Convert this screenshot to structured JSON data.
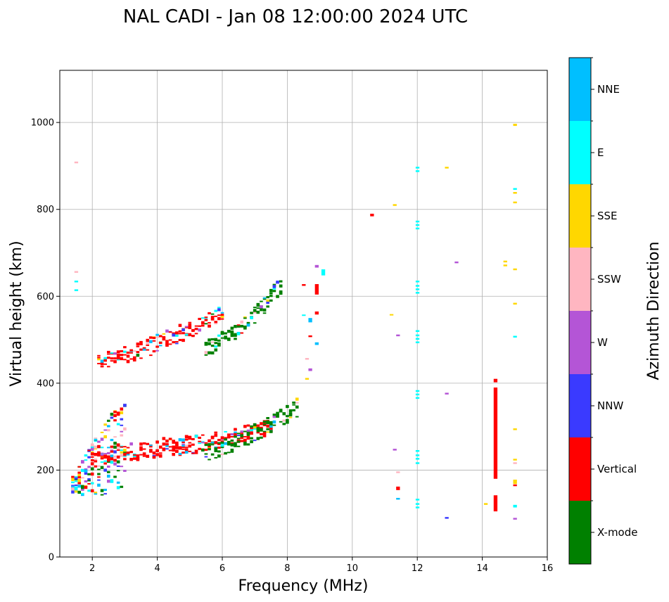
{
  "chart_data": {
    "type": "scatter",
    "title": "NAL CADI - Jan 08 12:00:00 2024 UTC",
    "xlabel": "Frequency (MHz)",
    "ylabel": "Virtual height (km)",
    "xlim": [
      1,
      16
    ],
    "ylim": [
      0,
      1120
    ],
    "xticks": [
      2,
      4,
      6,
      8,
      10,
      12,
      14,
      16
    ],
    "yticks": [
      0,
      200,
      400,
      600,
      800,
      1000
    ],
    "grid": true,
    "colorbar": {
      "label": "Azimuth Direction",
      "categories": [
        {
          "name": "X-mode",
          "color": "#008000"
        },
        {
          "name": "Vertical",
          "color": "#ff0000"
        },
        {
          "name": "NNW",
          "color": "#3a3aff"
        },
        {
          "name": "W",
          "color": "#b455d6"
        },
        {
          "name": "SSW",
          "color": "#ffb6c1"
        },
        {
          "name": "SSE",
          "color": "#ffd700"
        },
        {
          "name": "E",
          "color": "#00ffff"
        },
        {
          "name": "NNE",
          "color": "#00bfff"
        }
      ]
    },
    "features": [
      {
        "name": "E-region echoes",
        "category": "mixed",
        "fstart": 1.4,
        "fend": 3.0,
        "hstart": 140,
        "hend": 330
      },
      {
        "name": "F1 trace",
        "category": "Vertical",
        "fstart": 2.0,
        "fend": 5.0,
        "hstart": 230,
        "hend": 260
      },
      {
        "name": "F2 trace",
        "category": "Vertical",
        "fstart": 4.5,
        "fend": 7.5,
        "hstart": 250,
        "hend": 300
      },
      {
        "name": "F2 X-mode trace",
        "category": "X-mode",
        "fstart": 5.5,
        "fend": 8.3,
        "hstart": 240,
        "hend": 340
      },
      {
        "name": "Second hop",
        "category": "Vertical",
        "fstart": 2.2,
        "fend": 6.0,
        "hstart": 450,
        "hend": 560
      },
      {
        "name": "Second hop X-mode",
        "category": "X-mode",
        "fstart": 5.5,
        "fend": 7.8,
        "hstart": 480,
        "hend": 620
      }
    ],
    "points": [
      {
        "f": 14.4,
        "h0": 180,
        "h1": 390,
        "c": "Vertical"
      },
      {
        "f": 14.4,
        "h0": 105,
        "h1": 142,
        "c": "Vertical"
      },
      {
        "f": 14.4,
        "h0": 402,
        "h1": 410,
        "c": "Vertical"
      },
      {
        "f": 14.1,
        "h0": 120,
        "h1": 124,
        "c": "SSE"
      },
      {
        "f": 15.0,
        "h0": 992,
        "h1": 997,
        "c": "SSE"
      },
      {
        "f": 15.0,
        "h0": 845,
        "h1": 849,
        "c": "E"
      },
      {
        "f": 15.0,
        "h0": 836,
        "h1": 840,
        "c": "SSE"
      },
      {
        "f": 15.0,
        "h0": 814,
        "h1": 818,
        "c": "SSE"
      },
      {
        "f": 15.0,
        "h0": 660,
        "h1": 664,
        "c": "SSE"
      },
      {
        "f": 15.0,
        "h0": 581,
        "h1": 585,
        "c": "SSE"
      },
      {
        "f": 15.0,
        "h0": 505,
        "h1": 509,
        "c": "E"
      },
      {
        "f": 15.0,
        "h0": 292,
        "h1": 296,
        "c": "SSE"
      },
      {
        "f": 15.0,
        "h0": 222,
        "h1": 226,
        "c": "SSE"
      },
      {
        "f": 15.0,
        "h0": 214,
        "h1": 218,
        "c": "SSW"
      },
      {
        "f": 15.0,
        "h0": 168,
        "h1": 178,
        "c": "SSE"
      },
      {
        "f": 15.0,
        "h0": 163,
        "h1": 167,
        "c": "Vertical"
      },
      {
        "f": 15.0,
        "h0": 114,
        "h1": 120,
        "c": "E"
      },
      {
        "f": 15.0,
        "h0": 86,
        "h1": 90,
        "c": "W"
      },
      {
        "f": 14.7,
        "h0": 678,
        "h1": 682,
        "c": "SSE"
      },
      {
        "f": 14.7,
        "h0": 669,
        "h1": 673,
        "c": "SSE"
      },
      {
        "f": 12.0,
        "h0": 894,
        "h1": 898,
        "c": "E"
      },
      {
        "f": 12.0,
        "h0": 886,
        "h1": 890,
        "c": "E"
      },
      {
        "f": 12.0,
        "h0": 770,
        "h1": 774,
        "c": "E"
      },
      {
        "f": 12.0,
        "h0": 762,
        "h1": 766,
        "c": "E"
      },
      {
        "f": 12.0,
        "h0": 754,
        "h1": 758,
        "c": "E"
      },
      {
        "f": 12.0,
        "h0": 632,
        "h1": 636,
        "c": "E"
      },
      {
        "f": 12.0,
        "h0": 622,
        "h1": 626,
        "c": "E"
      },
      {
        "f": 12.0,
        "h0": 614,
        "h1": 618,
        "c": "E"
      },
      {
        "f": 12.0,
        "h0": 606,
        "h1": 610,
        "c": "E"
      },
      {
        "f": 12.0,
        "h0": 518,
        "h1": 522,
        "c": "E"
      },
      {
        "f": 12.0,
        "h0": 508,
        "h1": 512,
        "c": "E"
      },
      {
        "f": 12.0,
        "h0": 500,
        "h1": 504,
        "c": "E"
      },
      {
        "f": 12.0,
        "h0": 492,
        "h1": 496,
        "c": "E"
      },
      {
        "f": 12.0,
        "h0": 380,
        "h1": 384,
        "c": "E"
      },
      {
        "f": 12.0,
        "h0": 372,
        "h1": 376,
        "c": "E"
      },
      {
        "f": 12.0,
        "h0": 364,
        "h1": 368,
        "c": "E"
      },
      {
        "f": 12.0,
        "h0": 242,
        "h1": 246,
        "c": "E"
      },
      {
        "f": 12.0,
        "h0": 232,
        "h1": 236,
        "c": "E"
      },
      {
        "f": 12.0,
        "h0": 224,
        "h1": 228,
        "c": "E"
      },
      {
        "f": 12.0,
        "h0": 214,
        "h1": 218,
        "c": "E"
      },
      {
        "f": 12.0,
        "h0": 130,
        "h1": 134,
        "c": "E"
      },
      {
        "f": 12.0,
        "h0": 120,
        "h1": 124,
        "c": "E"
      },
      {
        "f": 12.0,
        "h0": 112,
        "h1": 116,
        "c": "E"
      },
      {
        "f": 12.9,
        "h0": 894,
        "h1": 898,
        "c": "SSE"
      },
      {
        "f": 13.2,
        "h0": 676,
        "h1": 680,
        "c": "W"
      },
      {
        "f": 12.9,
        "h0": 374,
        "h1": 378,
        "c": "W"
      },
      {
        "f": 12.9,
        "h0": 88,
        "h1": 92,
        "c": "NNW"
      },
      {
        "f": 10.6,
        "h0": 784,
        "h1": 790,
        "c": "Vertical"
      },
      {
        "f": 11.3,
        "h0": 808,
        "h1": 812,
        "c": "SSE"
      },
      {
        "f": 11.2,
        "h0": 556,
        "h1": 559,
        "c": "SSE"
      },
      {
        "f": 11.4,
        "h0": 508,
        "h1": 512,
        "c": "W"
      },
      {
        "f": 11.3,
        "h0": 245,
        "h1": 249,
        "c": "W"
      },
      {
        "f": 11.4,
        "h0": 193,
        "h1": 197,
        "c": "SSW"
      },
      {
        "f": 11.4,
        "h0": 154,
        "h1": 162,
        "c": "Vertical"
      },
      {
        "f": 11.4,
        "h0": 132,
        "h1": 136,
        "c": "NNE"
      },
      {
        "f": 8.9,
        "h0": 666,
        "h1": 672,
        "c": "W"
      },
      {
        "f": 9.1,
        "h0": 648,
        "h1": 662,
        "c": "E"
      },
      {
        "f": 8.9,
        "h0": 604,
        "h1": 628,
        "c": "Vertical"
      },
      {
        "f": 8.9,
        "h0": 558,
        "h1": 565,
        "c": "Vertical"
      },
      {
        "f": 8.7,
        "h0": 540,
        "h1": 550,
        "c": "NNE"
      },
      {
        "f": 8.5,
        "h0": 555,
        "h1": 558,
        "c": "E"
      },
      {
        "f": 8.9,
        "h0": 488,
        "h1": 494,
        "c": "NNE"
      },
      {
        "f": 8.7,
        "h0": 506,
        "h1": 510,
        "c": "Vertical"
      },
      {
        "f": 8.5,
        "h0": 624,
        "h1": 628,
        "c": "Vertical"
      },
      {
        "f": 8.6,
        "h0": 454,
        "h1": 458,
        "c": "SSW"
      },
      {
        "f": 8.7,
        "h0": 428,
        "h1": 434,
        "c": "W"
      },
      {
        "f": 8.6,
        "h0": 408,
        "h1": 412,
        "c": "SSE"
      },
      {
        "f": 1.5,
        "h0": 906,
        "h1": 910,
        "c": "SSW"
      },
      {
        "f": 1.5,
        "h0": 654,
        "h1": 658,
        "c": "SSW"
      },
      {
        "f": 1.5,
        "h0": 632,
        "h1": 636,
        "c": "E"
      },
      {
        "f": 1.5,
        "h0": 612,
        "h1": 616,
        "c": "E"
      }
    ]
  }
}
